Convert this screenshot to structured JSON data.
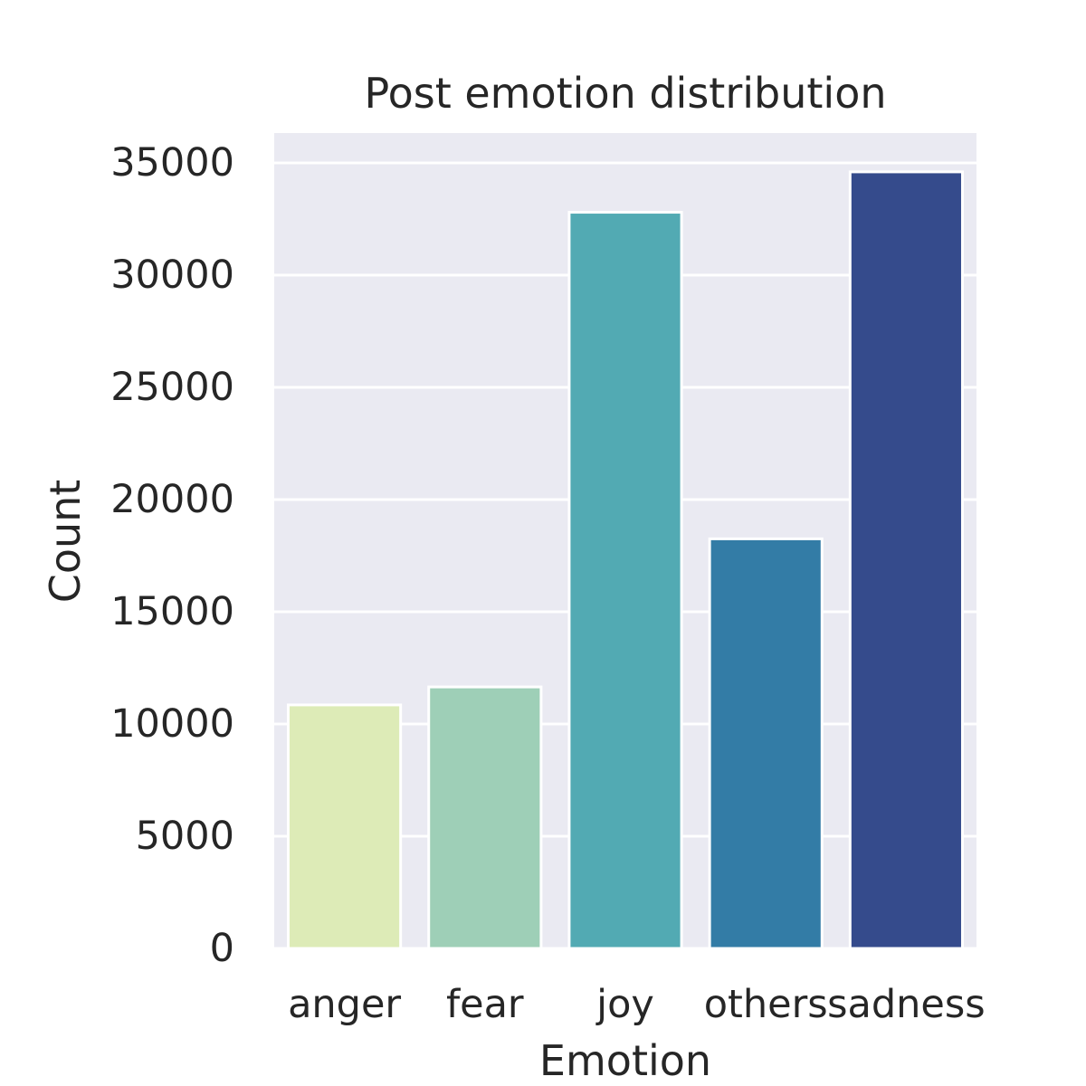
{
  "chart_data": {
    "type": "bar",
    "title": "Post emotion distribution",
    "xlabel": "Emotion",
    "ylabel": "Count",
    "categories": [
      "anger",
      "fear",
      "joy",
      "others",
      "sadness"
    ],
    "values": [
      10850,
      11650,
      32800,
      18250,
      34600
    ],
    "colors": [
      "#ddebb7",
      "#9ecfb7",
      "#52aab3",
      "#337ca6",
      "#354b8c"
    ],
    "yticks": [
      0,
      5000,
      10000,
      15000,
      20000,
      25000,
      30000,
      35000
    ],
    "ytick_labels": [
      "0",
      "5000",
      "10000",
      "15000",
      "20000",
      "25000",
      "30000",
      "35000"
    ],
    "ylim": [
      0,
      36330
    ],
    "grid": true,
    "background": "#eaeaf2"
  }
}
